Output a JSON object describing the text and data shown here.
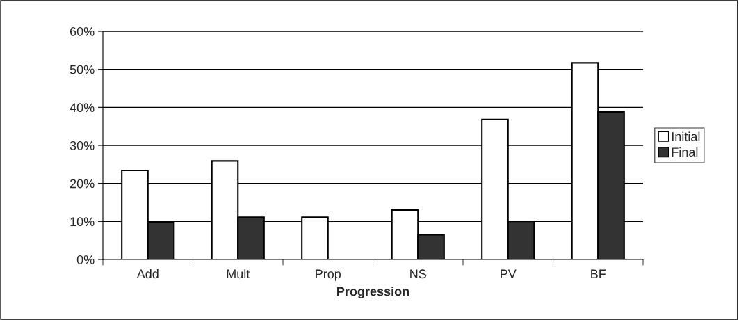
{
  "chart_data": {
    "type": "bar",
    "xlabel": "Progression",
    "categories": [
      "Add",
      "Mult",
      "Prop",
      "NS",
      "PV",
      "BF"
    ],
    "series": [
      {
        "name": "Initial",
        "color": "#ffffff",
        "values": [
          23.4,
          25.9,
          11.1,
          13.0,
          36.8,
          51.7
        ]
      },
      {
        "name": "Final",
        "color": "#333333",
        "values": [
          9.9,
          11.1,
          null,
          6.5,
          10.0,
          38.8
        ]
      }
    ],
    "ylim": [
      0,
      60
    ],
    "yticks": [
      {
        "value": 0,
        "label": "0%"
      },
      {
        "value": 10,
        "label": "10%"
      },
      {
        "value": 20,
        "label": "20%"
      },
      {
        "value": 30,
        "label": "30%"
      },
      {
        "value": 40,
        "label": "40%"
      },
      {
        "value": 50,
        "label": "50%"
      },
      {
        "value": 60,
        "label": "60%"
      }
    ],
    "grid": "y",
    "legend": "right"
  }
}
